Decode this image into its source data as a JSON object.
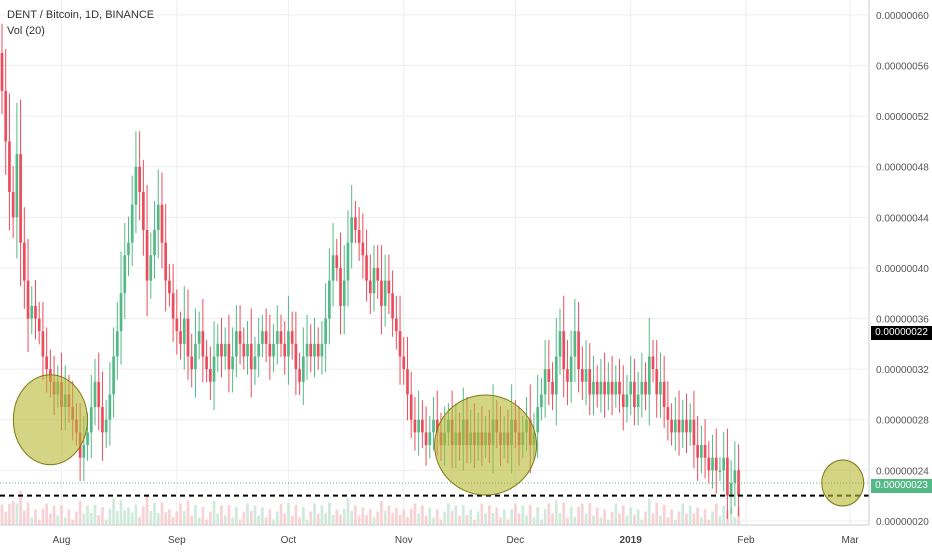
{
  "header": {
    "symbol_line": "DENT / Bitcoin, 1D, BINANCE",
    "volume_line": "Vol (20)"
  },
  "price_tags": {
    "last_price": "0.00000022",
    "level_price": "0.00000023"
  },
  "colors": {
    "up": "#53b987",
    "down": "#eb4d5c",
    "up_volume": "#cfe9dc",
    "down_volume": "#f8d1d5",
    "circle_fill": "#b5b832",
    "circle_stroke": "#7d7a14",
    "last_price_tag": "#000000",
    "level_tag": "#53b987"
  },
  "chart_data": {
    "type": "candlestick",
    "title": "DENT / Bitcoin, 1D, BINANCE",
    "subtitle": "Vol (20)",
    "y_axis": {
      "ticks": [
        2e-07,
        2.4e-07,
        2.8e-07,
        3.2e-07,
        3.6e-07,
        4e-07,
        4.4e-07,
        4.8e-07,
        5.2e-07,
        5.6e-07,
        6e-07
      ],
      "tick_labels": [
        "0.00000020",
        "0.00000024",
        "0.00000028",
        "0.00000032",
        "0.00000036",
        "0.00000040",
        "0.00000044",
        "0.00000048",
        "0.00000052",
        "0.00000056",
        "0.00000060"
      ],
      "range": [
        1.968e-07,
        6.118e-07
      ],
      "grid": true
    },
    "x_axis": {
      "tick_labels": [
        "Aug",
        "Sep",
        "Oct",
        "Nov",
        "Dec",
        "2019",
        "Feb",
        "Mar"
      ],
      "tick_day_index": [
        16,
        47,
        77,
        108,
        138,
        169,
        200,
        228
      ],
      "grid": true
    },
    "horizontal_lines": [
      {
        "value": 2.2e-07,
        "style": "dashed",
        "label": "0.00000022"
      },
      {
        "value": 2.3e-07,
        "style": "dotted",
        "label": "0.00000023"
      }
    ],
    "candles_close": [
      5.4e-07,
      5e-07,
      4.6e-07,
      4.4e-07,
      4.9e-07,
      4.2e-07,
      3.9e-07,
      3.6e-07,
      3.7e-07,
      3.6e-07,
      3.5e-07,
      3.3e-07,
      3.2e-07,
      3.1e-07,
      3e-07,
      3.1e-07,
      2.9e-07,
      3e-07,
      2.9e-07,
      2.8e-07,
      2.7e-07,
      2.5e-07,
      2.6e-07,
      2.7e-07,
      2.9e-07,
      3.1e-07,
      2.9e-07,
      2.7e-07,
      2.8e-07,
      3e-07,
      3.3e-07,
      3.5e-07,
      3.8e-07,
      4.1e-07,
      4.2e-07,
      4.5e-07,
      4.8e-07,
      4.6e-07,
      4.3e-07,
      3.9e-07,
      4.1e-07,
      4.3e-07,
      4.5e-07,
      4.2e-07,
      3.9e-07,
      3.8e-07,
      3.6e-07,
      3.5e-07,
      3.4e-07,
      3.6e-07,
      3.3e-07,
      3.2e-07,
      3.4e-07,
      3.5e-07,
      3.3e-07,
      3.2e-07,
      3.1e-07,
      3.3e-07,
      3.4e-07,
      3.3e-07,
      3.4e-07,
      3.2e-07,
      3.3e-07,
      3.5e-07,
      3.4e-07,
      3.3e-07,
      3.4e-07,
      3.2e-07,
      3.3e-07,
      3.4e-07,
      3.5e-07,
      3.4e-07,
      3.3e-07,
      3.4e-07,
      3.5e-07,
      3.4e-07,
      3.3e-07,
      3.5e-07,
      3.4e-07,
      3.2e-07,
      3.1e-07,
      3.3e-07,
      3.4e-07,
      3.3e-07,
      3.4e-07,
      3.3e-07,
      3.4e-07,
      3.6e-07,
      3.9e-07,
      4.1e-07,
      4e-07,
      3.7e-07,
      3.9e-07,
      4.2e-07,
      4.4e-07,
      4.3e-07,
      4.2e-07,
      4.1e-07,
      3.9e-07,
      3.8e-07,
      4e-07,
      3.9e-07,
      3.7e-07,
      3.9e-07,
      3.8e-07,
      3.6e-07,
      3.5e-07,
      3.3e-07,
      3.2e-07,
      3e-07,
      2.8e-07,
      2.7e-07,
      2.8e-07,
      2.7e-07,
      2.6e-07,
      2.7e-07,
      2.8e-07,
      2.7e-07,
      2.6e-07,
      2.7e-07,
      2.8e-07,
      2.6e-07,
      2.7e-07,
      2.6e-07,
      2.8e-07,
      2.6e-07,
      2.7e-07,
      2.6e-07,
      2.7e-07,
      2.6e-07,
      2.7e-07,
      2.6e-07,
      2.8e-07,
      2.7e-07,
      2.6e-07,
      2.7e-07,
      2.6e-07,
      2.8e-07,
      2.7e-07,
      2.6e-07,
      2.7e-07,
      2.8e-07,
      2.6e-07,
      2.7e-07,
      2.9e-07,
      3e-07,
      3.2e-07,
      3.1e-07,
      3e-07,
      3.3e-07,
      3.5e-07,
      3.2e-07,
      3.1e-07,
      3.3e-07,
      3.5e-07,
      3.2e-07,
      3.1e-07,
      3.2e-07,
      3e-07,
      3.1e-07,
      3e-07,
      3.1e-07,
      3e-07,
      3.1e-07,
      3e-07,
      3.1e-07,
      3e-07,
      2.9e-07,
      3e-07,
      3.1e-07,
      2.9e-07,
      3e-07,
      3.1e-07,
      3e-07,
      3.3e-07,
      3.2e-07,
      3e-07,
      3.1e-07,
      2.9e-07,
      2.8e-07,
      2.7e-07,
      2.8e-07,
      2.7e-07,
      2.8e-07,
      2.7e-07,
      2.8e-07,
      2.6e-07,
      2.5e-07,
      2.6e-07,
      2.5e-07,
      2.4e-07,
      2.5e-07,
      2.4e-07,
      2.4e-07,
      2.5e-07,
      2.2e-07,
      2.3e-07,
      2.4e-07,
      2.2e-07
    ],
    "candles_open": [
      5.7e-07,
      5.4e-07,
      5e-07,
      4.6e-07,
      4.4e-07,
      4.9e-07,
      4.2e-07,
      3.9e-07,
      3.6e-07,
      3.7e-07,
      3.6e-07,
      3.5e-07,
      3.3e-07,
      3.2e-07,
      3.1e-07,
      3e-07,
      3.1e-07,
      2.9e-07,
      3e-07,
      2.9e-07,
      2.8e-07,
      2.7e-07,
      2.5e-07,
      2.6e-07,
      2.7e-07,
      2.9e-07,
      3.1e-07,
      2.9e-07,
      2.7e-07,
      2.8e-07,
      3e-07,
      3.3e-07,
      3.5e-07,
      3.8e-07,
      4.1e-07,
      4.2e-07,
      4.5e-07,
      4.8e-07,
      4.6e-07,
      4.3e-07,
      3.9e-07,
      4.1e-07,
      4.3e-07,
      4.5e-07,
      4.2e-07,
      3.9e-07,
      3.8e-07,
      3.6e-07,
      3.5e-07,
      3.4e-07,
      3.6e-07,
      3.3e-07,
      3.2e-07,
      3.4e-07,
      3.5e-07,
      3.3e-07,
      3.2e-07,
      3.1e-07,
      3.3e-07,
      3.4e-07,
      3.3e-07,
      3.4e-07,
      3.2e-07,
      3.3e-07,
      3.5e-07,
      3.4e-07,
      3.3e-07,
      3.4e-07,
      3.2e-07,
      3.3e-07,
      3.4e-07,
      3.5e-07,
      3.4e-07,
      3.3e-07,
      3.4e-07,
      3.5e-07,
      3.4e-07,
      3.3e-07,
      3.5e-07,
      3.4e-07,
      3.2e-07,
      3.1e-07,
      3.3e-07,
      3.4e-07,
      3.3e-07,
      3.4e-07,
      3.3e-07,
      3.4e-07,
      3.6e-07,
      3.9e-07,
      4.1e-07,
      4e-07,
      3.7e-07,
      3.9e-07,
      4.2e-07,
      4.4e-07,
      4.3e-07,
      4.2e-07,
      4.1e-07,
      3.9e-07,
      3.8e-07,
      4e-07,
      3.9e-07,
      3.7e-07,
      3.9e-07,
      3.8e-07,
      3.6e-07,
      3.5e-07,
      3.3e-07,
      3.2e-07,
      3e-07,
      2.8e-07,
      2.7e-07,
      2.8e-07,
      2.7e-07,
      2.6e-07,
      2.7e-07,
      2.8e-07,
      2.7e-07,
      2.6e-07,
      2.7e-07,
      2.8e-07,
      2.6e-07,
      2.7e-07,
      2.6e-07,
      2.8e-07,
      2.6e-07,
      2.7e-07,
      2.6e-07,
      2.7e-07,
      2.6e-07,
      2.7e-07,
      2.6e-07,
      2.8e-07,
      2.7e-07,
      2.6e-07,
      2.7e-07,
      2.6e-07,
      2.8e-07,
      2.7e-07,
      2.6e-07,
      2.7e-07,
      2.8e-07,
      2.6e-07,
      2.7e-07,
      2.9e-07,
      3e-07,
      3.2e-07,
      3.1e-07,
      3e-07,
      3.3e-07,
      3.5e-07,
      3.2e-07,
      3.1e-07,
      3.3e-07,
      3.5e-07,
      3.2e-07,
      3.1e-07,
      3.2e-07,
      3e-07,
      3.1e-07,
      3e-07,
      3.1e-07,
      3e-07,
      3.1e-07,
      3e-07,
      3.1e-07,
      3e-07,
      2.9e-07,
      3e-07,
      3.1e-07,
      2.9e-07,
      3e-07,
      3.1e-07,
      3e-07,
      3.3e-07,
      3.2e-07,
      3e-07,
      3.1e-07,
      2.9e-07,
      2.8e-07,
      2.7e-07,
      2.8e-07,
      2.7e-07,
      2.8e-07,
      2.7e-07,
      2.8e-07,
      2.6e-07,
      2.5e-07,
      2.6e-07,
      2.5e-07,
      2.4e-07,
      2.5e-07,
      2.4e-07,
      2.4e-07,
      2.5e-07,
      2.2e-07,
      2.3e-07,
      2.4e-07
    ],
    "annotations": [
      {
        "shape": "circle",
        "center_day_index": 13,
        "center_value": 2.8e-07
      },
      {
        "shape": "circle",
        "center_day_index": 130,
        "center_value": 2.6e-07
      },
      {
        "shape": "circle",
        "center_day_index": 226,
        "center_value": 2.3e-07
      }
    ]
  }
}
